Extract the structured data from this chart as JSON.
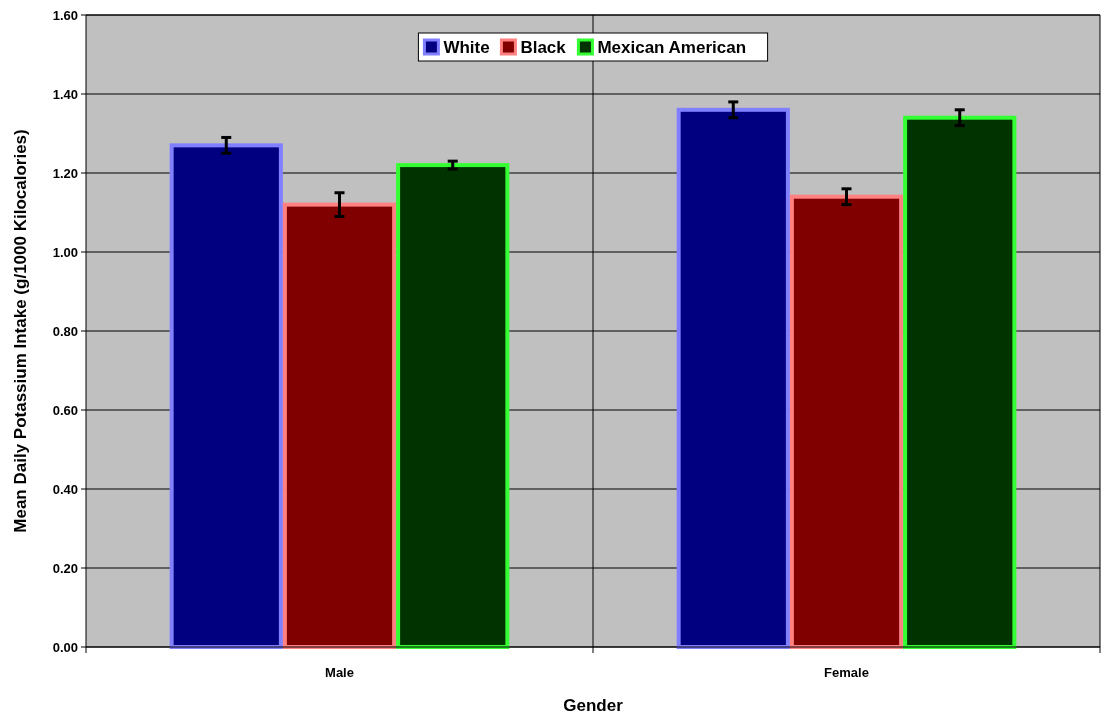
{
  "chart_data": {
    "type": "bar",
    "xlabel": "Gender",
    "ylabel": "Mean Daily Potassium Intake (g/1000 Kilocalories)",
    "categories": [
      "Male",
      "Female"
    ],
    "series": [
      {
        "name": "White",
        "color": "#000080",
        "values": [
          1.27,
          1.36
        ],
        "errors": [
          0.02,
          0.02
        ]
      },
      {
        "name": "Black",
        "color": "#800000",
        "values": [
          1.12,
          1.14
        ],
        "errors": [
          0.03,
          0.02
        ]
      },
      {
        "name": "Mexican American",
        "color": "#003300",
        "values": [
          1.22,
          1.34
        ],
        "errors": [
          0.01,
          0.02
        ]
      }
    ],
    "ylim": [
      0,
      1.6
    ],
    "yticks": [
      {
        "value": 0,
        "label": "0.00"
      },
      {
        "value": 0.2,
        "label": "0.20"
      },
      {
        "value": 0.4,
        "label": "0.40"
      },
      {
        "value": 0.6,
        "label": "0.60"
      },
      {
        "value": 0.8,
        "label": "0.80"
      },
      {
        "value": 1,
        "label": "1.00"
      },
      {
        "value": 1.2,
        "label": "1.20"
      },
      {
        "value": 1.4,
        "label": "1.40"
      },
      {
        "value": 1.6,
        "label": "1.60"
      }
    ],
    "grid": true,
    "legend": "top"
  }
}
